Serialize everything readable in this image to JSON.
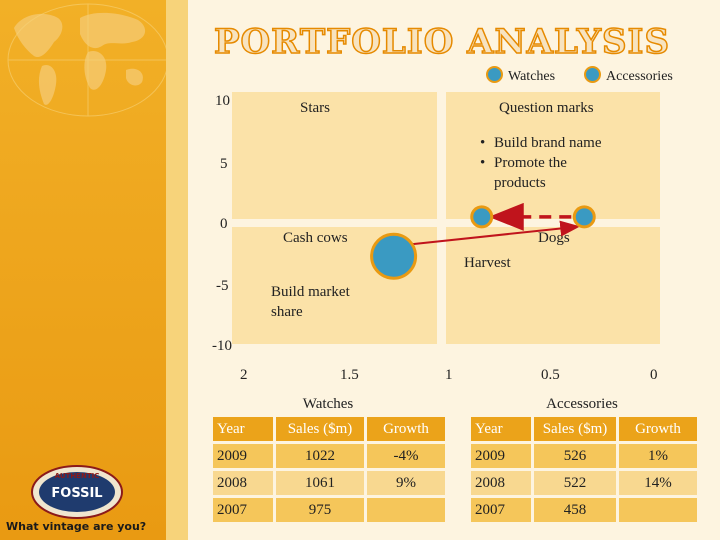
{
  "title": "PORTFOLIO ANALYSIS",
  "legend": [
    "Watches",
    "Accessories"
  ],
  "y_ticks": [
    "10",
    "5",
    "0",
    "-5",
    "-10"
  ],
  "x_ticks": [
    "2",
    "1.5",
    "1",
    "0.5",
    "0"
  ],
  "quadrants": {
    "top_left": "Stars",
    "top_right": "Question marks",
    "bottom_left": "Cash cows",
    "bottom_right": "Dogs"
  },
  "notes": {
    "qm_bullets": [
      "Build brand name",
      "Promote the products"
    ],
    "harvest": "Harvest",
    "build_share": "Build market share"
  },
  "colors": {
    "bubble": "#3a9ac2",
    "bubble_border": "#e99a12",
    "arrow": "#c0141c",
    "accent": "#e99a12"
  },
  "chart_data": {
    "type": "scatter",
    "xlim": [
      2,
      0
    ],
    "ylim": [
      -10,
      10
    ],
    "points": [
      {
        "series": "Watches",
        "x": 0.85,
        "y": 0.5
      },
      {
        "series": "Accessories",
        "x": 0.35,
        "y": 0.5
      },
      {
        "series": "Watches",
        "x": 1.28,
        "y": -2.7
      }
    ]
  },
  "watches_table": {
    "title": "Watches",
    "headers": [
      "Year",
      "Sales ($m)",
      "Growth"
    ],
    "rows": [
      [
        "2009",
        "1022",
        "-4%"
      ],
      [
        "2008",
        "1061",
        "9%"
      ],
      [
        "2007",
        "975",
        ""
      ]
    ]
  },
  "accessories_table": {
    "title": "Accessories",
    "headers": [
      "Year",
      "Sales ($m)",
      "Growth"
    ],
    "rows": [
      [
        "2009",
        "526",
        "1%"
      ],
      [
        "2008",
        "522",
        "14%"
      ],
      [
        "2007",
        "458",
        ""
      ]
    ]
  },
  "logo": {
    "brand": "FOSSIL",
    "ring_text": "AUTHENTIC"
  },
  "tagline": "What vintage are you?"
}
